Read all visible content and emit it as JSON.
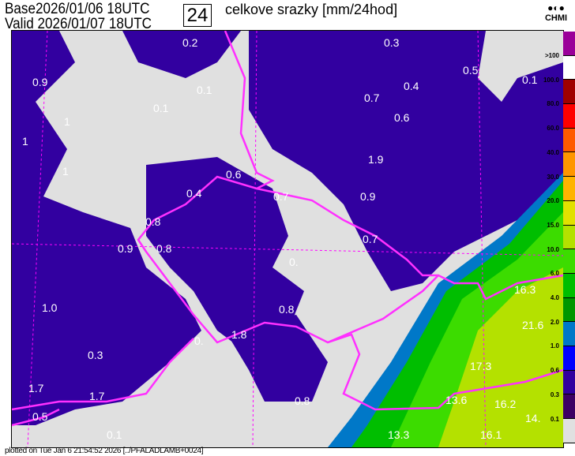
{
  "header": {
    "base_label": "Base",
    "base_time": "2026/01/06 18UTC",
    "valid_label": "Valid",
    "valid_time": "2026/01/07 18UTC",
    "hours": "24",
    "title": "celkove srazky [mm/24hod]",
    "logo_text": "CHMI"
  },
  "legend": {
    "labels": [
      ">100",
      "100.0",
      "80.0",
      "60.0",
      "40.0",
      "30.0",
      "20.0",
      "15.0",
      "10.0",
      "6.0",
      "4.0",
      "2.0",
      "1.0",
      "0.6",
      "0.3",
      "0.1"
    ],
    "colors": [
      "#9a0099",
      "#ffffff",
      "#a00000",
      "#ff0000",
      "#ff5a00",
      "#ff9600",
      "#ffb400",
      "#e1e100",
      "#b4e100",
      "#3cdc00",
      "#00be00",
      "#009600",
      "#0078c8",
      "#0000ff",
      "#3200a0",
      "#3c0064",
      "#e0e0e0"
    ]
  },
  "map": {
    "background": "#e0e0e0",
    "border_color": "#ff30ff",
    "labels": [
      "0.2",
      "0.3",
      "0.9",
      "0.1",
      "0.4",
      "0.7",
      "0.6",
      "0.1",
      "1",
      "0.5",
      "0.1",
      "1",
      "1.9",
      "0.6",
      "0.4",
      "0.7",
      "0.9",
      "1",
      "0.8",
      "0.9",
      "0.8",
      "0.7",
      "0.",
      "16.3",
      "1.0",
      "0.8",
      "21.6",
      "1.8",
      "0.3",
      "0.",
      "17.3",
      "1.7",
      "1.7",
      "0.8",
      "13.6",
      "16.2",
      "0.5",
      "14.",
      "0.1",
      "13.3",
      "16.1"
    ]
  },
  "footer": "plotted on Tue Jan  6 21:54:52 2026  [../PFALADLAMB+0024]"
}
